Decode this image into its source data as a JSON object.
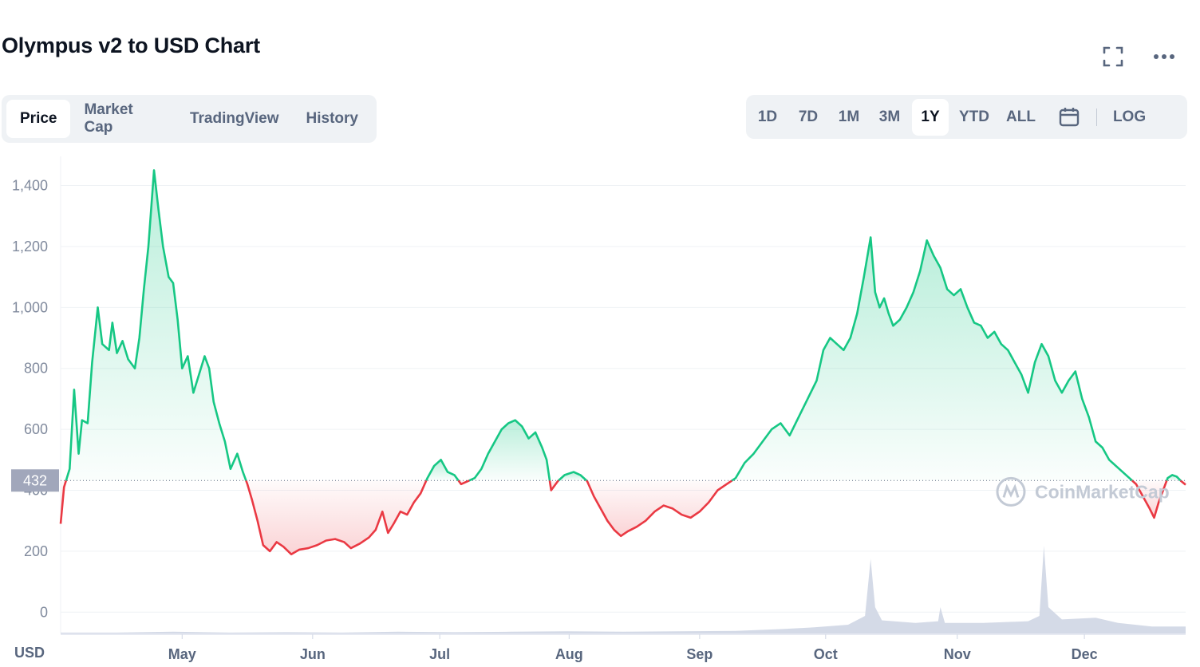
{
  "header": {
    "title": "Olympus v2 to USD Chart",
    "icons": [
      "fullscreen-icon",
      "more-options-icon"
    ]
  },
  "tabs": [
    {
      "label": "Price",
      "active": true
    },
    {
      "label": "Market Cap",
      "active": false
    },
    {
      "label": "TradingView",
      "active": false
    },
    {
      "label": "History",
      "active": false
    }
  ],
  "ranges": [
    {
      "label": "1D",
      "active": false
    },
    {
      "label": "7D",
      "active": false
    },
    {
      "label": "1M",
      "active": false
    },
    {
      "label": "3M",
      "active": false
    },
    {
      "label": "1Y",
      "active": true
    },
    {
      "label": "YTD",
      "active": false
    },
    {
      "label": "ALL",
      "active": false
    }
  ],
  "log_label": "LOG",
  "watermark": "CoinMarketCap",
  "colors": {
    "up": "#16c784",
    "down": "#ea3943",
    "volume": "#cfd6e4",
    "grid": "#eff2f5",
    "current_badge": "#a1a7bb"
  },
  "chart_data": {
    "type": "line",
    "currency_label": "USD",
    "current_price": 432,
    "current_price_label": "432",
    "baseline": 432,
    "ylim": [
      -70,
      1480
    ],
    "yticks": [
      0,
      200,
      400,
      600,
      800,
      1000,
      1200,
      1400
    ],
    "ytick_labels": [
      "0",
      "200",
      "400",
      "600",
      "800",
      "1,000",
      "1,200",
      "1,400"
    ],
    "x_range": [
      0,
      1
    ],
    "xticks": [
      {
        "pos": 0.108,
        "label": "May"
      },
      {
        "pos": 0.224,
        "label": "Jun"
      },
      {
        "pos": 0.337,
        "label": "Jul"
      },
      {
        "pos": 0.452,
        "label": "Aug"
      },
      {
        "pos": 0.568,
        "label": "Sep"
      },
      {
        "pos": 0.68,
        "label": "Oct"
      },
      {
        "pos": 0.797,
        "label": "Nov"
      },
      {
        "pos": 0.91,
        "label": "Dec"
      }
    ],
    "price": [
      [
        0.0,
        290
      ],
      [
        0.003,
        410
      ],
      [
        0.008,
        470
      ],
      [
        0.012,
        730
      ],
      [
        0.016,
        520
      ],
      [
        0.019,
        630
      ],
      [
        0.024,
        620
      ],
      [
        0.028,
        820
      ],
      [
        0.033,
        1000
      ],
      [
        0.037,
        880
      ],
      [
        0.043,
        860
      ],
      [
        0.046,
        950
      ],
      [
        0.05,
        850
      ],
      [
        0.055,
        890
      ],
      [
        0.06,
        830
      ],
      [
        0.066,
        800
      ],
      [
        0.07,
        900
      ],
      [
        0.074,
        1060
      ],
      [
        0.078,
        1200
      ],
      [
        0.083,
        1450
      ],
      [
        0.087,
        1320
      ],
      [
        0.091,
        1200
      ],
      [
        0.096,
        1100
      ],
      [
        0.1,
        1080
      ],
      [
        0.104,
        960
      ],
      [
        0.108,
        800
      ],
      [
        0.113,
        840
      ],
      [
        0.118,
        720
      ],
      [
        0.123,
        780
      ],
      [
        0.128,
        840
      ],
      [
        0.132,
        800
      ],
      [
        0.136,
        690
      ],
      [
        0.141,
        620
      ],
      [
        0.146,
        560
      ],
      [
        0.151,
        470
      ],
      [
        0.157,
        520
      ],
      [
        0.162,
        460
      ],
      [
        0.166,
        420
      ],
      [
        0.17,
        370
      ],
      [
        0.175,
        300
      ],
      [
        0.18,
        220
      ],
      [
        0.186,
        200
      ],
      [
        0.192,
        230
      ],
      [
        0.198,
        215
      ],
      [
        0.205,
        190
      ],
      [
        0.212,
        205
      ],
      [
        0.22,
        210
      ],
      [
        0.228,
        220
      ],
      [
        0.236,
        235
      ],
      [
        0.244,
        240
      ],
      [
        0.252,
        230
      ],
      [
        0.258,
        210
      ],
      [
        0.266,
        225
      ],
      [
        0.274,
        245
      ],
      [
        0.28,
        270
      ],
      [
        0.286,
        330
      ],
      [
        0.291,
        260
      ],
      [
        0.296,
        290
      ],
      [
        0.302,
        330
      ],
      [
        0.308,
        320
      ],
      [
        0.314,
        360
      ],
      [
        0.32,
        390
      ],
      [
        0.326,
        440
      ],
      [
        0.332,
        480
      ],
      [
        0.338,
        500
      ],
      [
        0.344,
        460
      ],
      [
        0.35,
        450
      ],
      [
        0.356,
        420
      ],
      [
        0.362,
        430
      ],
      [
        0.368,
        440
      ],
      [
        0.374,
        470
      ],
      [
        0.38,
        520
      ],
      [
        0.386,
        560
      ],
      [
        0.392,
        600
      ],
      [
        0.398,
        620
      ],
      [
        0.404,
        630
      ],
      [
        0.41,
        610
      ],
      [
        0.416,
        570
      ],
      [
        0.422,
        590
      ],
      [
        0.428,
        540
      ],
      [
        0.432,
        500
      ],
      [
        0.436,
        400
      ],
      [
        0.442,
        430
      ],
      [
        0.448,
        450
      ],
      [
        0.456,
        460
      ],
      [
        0.462,
        450
      ],
      [
        0.468,
        430
      ],
      [
        0.474,
        380
      ],
      [
        0.48,
        340
      ],
      [
        0.486,
        300
      ],
      [
        0.492,
        270
      ],
      [
        0.498,
        250
      ],
      [
        0.504,
        265
      ],
      [
        0.512,
        280
      ],
      [
        0.52,
        300
      ],
      [
        0.528,
        330
      ],
      [
        0.536,
        350
      ],
      [
        0.544,
        340
      ],
      [
        0.552,
        320
      ],
      [
        0.56,
        310
      ],
      [
        0.568,
        330
      ],
      [
        0.576,
        360
      ],
      [
        0.584,
        400
      ],
      [
        0.592,
        420
      ],
      [
        0.6,
        440
      ],
      [
        0.608,
        490
      ],
      [
        0.616,
        520
      ],
      [
        0.624,
        560
      ],
      [
        0.632,
        600
      ],
      [
        0.64,
        620
      ],
      [
        0.648,
        580
      ],
      [
        0.656,
        640
      ],
      [
        0.664,
        700
      ],
      [
        0.672,
        760
      ],
      [
        0.678,
        860
      ],
      [
        0.684,
        900
      ],
      [
        0.69,
        880
      ],
      [
        0.696,
        860
      ],
      [
        0.702,
        900
      ],
      [
        0.708,
        980
      ],
      [
        0.714,
        1100
      ],
      [
        0.72,
        1230
      ],
      [
        0.724,
        1050
      ],
      [
        0.728,
        1000
      ],
      [
        0.732,
        1030
      ],
      [
        0.736,
        980
      ],
      [
        0.74,
        940
      ],
      [
        0.746,
        960
      ],
      [
        0.752,
        1000
      ],
      [
        0.758,
        1050
      ],
      [
        0.764,
        1120
      ],
      [
        0.77,
        1220
      ],
      [
        0.776,
        1170
      ],
      [
        0.782,
        1130
      ],
      [
        0.788,
        1060
      ],
      [
        0.794,
        1040
      ],
      [
        0.8,
        1060
      ],
      [
        0.806,
        1000
      ],
      [
        0.812,
        950
      ],
      [
        0.818,
        940
      ],
      [
        0.824,
        900
      ],
      [
        0.83,
        920
      ],
      [
        0.836,
        880
      ],
      [
        0.842,
        860
      ],
      [
        0.848,
        820
      ],
      [
        0.854,
        780
      ],
      [
        0.86,
        720
      ],
      [
        0.866,
        820
      ],
      [
        0.872,
        880
      ],
      [
        0.878,
        840
      ],
      [
        0.884,
        760
      ],
      [
        0.89,
        720
      ],
      [
        0.896,
        760
      ],
      [
        0.902,
        790
      ],
      [
        0.908,
        700
      ],
      [
        0.914,
        640
      ],
      [
        0.92,
        560
      ],
      [
        0.926,
        540
      ],
      [
        0.932,
        500
      ],
      [
        0.938,
        480
      ],
      [
        0.944,
        460
      ],
      [
        0.95,
        440
      ],
      [
        0.956,
        420
      ],
      [
        0.962,
        380
      ],
      [
        0.968,
        340
      ],
      [
        0.972,
        310
      ],
      [
        0.976,
        360
      ],
      [
        0.98,
        400
      ],
      [
        0.984,
        440
      ],
      [
        0.988,
        450
      ],
      [
        0.992,
        445
      ],
      [
        0.996,
        430
      ],
      [
        1.0,
        418
      ]
    ],
    "volume": [
      [
        0.0,
        0.01
      ],
      [
        0.05,
        0.01
      ],
      [
        0.1,
        0.02
      ],
      [
        0.15,
        0.01
      ],
      [
        0.2,
        0.015
      ],
      [
        0.25,
        0.01
      ],
      [
        0.3,
        0.02
      ],
      [
        0.35,
        0.015
      ],
      [
        0.4,
        0.02
      ],
      [
        0.45,
        0.025
      ],
      [
        0.5,
        0.02
      ],
      [
        0.55,
        0.025
      ],
      [
        0.6,
        0.03
      ],
      [
        0.64,
        0.05
      ],
      [
        0.67,
        0.07
      ],
      [
        0.7,
        0.1
      ],
      [
        0.715,
        0.2
      ],
      [
        0.72,
        0.85
      ],
      [
        0.724,
        0.3
      ],
      [
        0.73,
        0.15
      ],
      [
        0.76,
        0.12
      ],
      [
        0.78,
        0.14
      ],
      [
        0.782,
        0.3
      ],
      [
        0.786,
        0.12
      ],
      [
        0.82,
        0.12
      ],
      [
        0.86,
        0.14
      ],
      [
        0.87,
        0.2
      ],
      [
        0.874,
        1.0
      ],
      [
        0.878,
        0.3
      ],
      [
        0.89,
        0.16
      ],
      [
        0.92,
        0.18
      ],
      [
        0.94,
        0.12
      ],
      [
        0.97,
        0.08
      ],
      [
        1.0,
        0.08
      ]
    ]
  }
}
